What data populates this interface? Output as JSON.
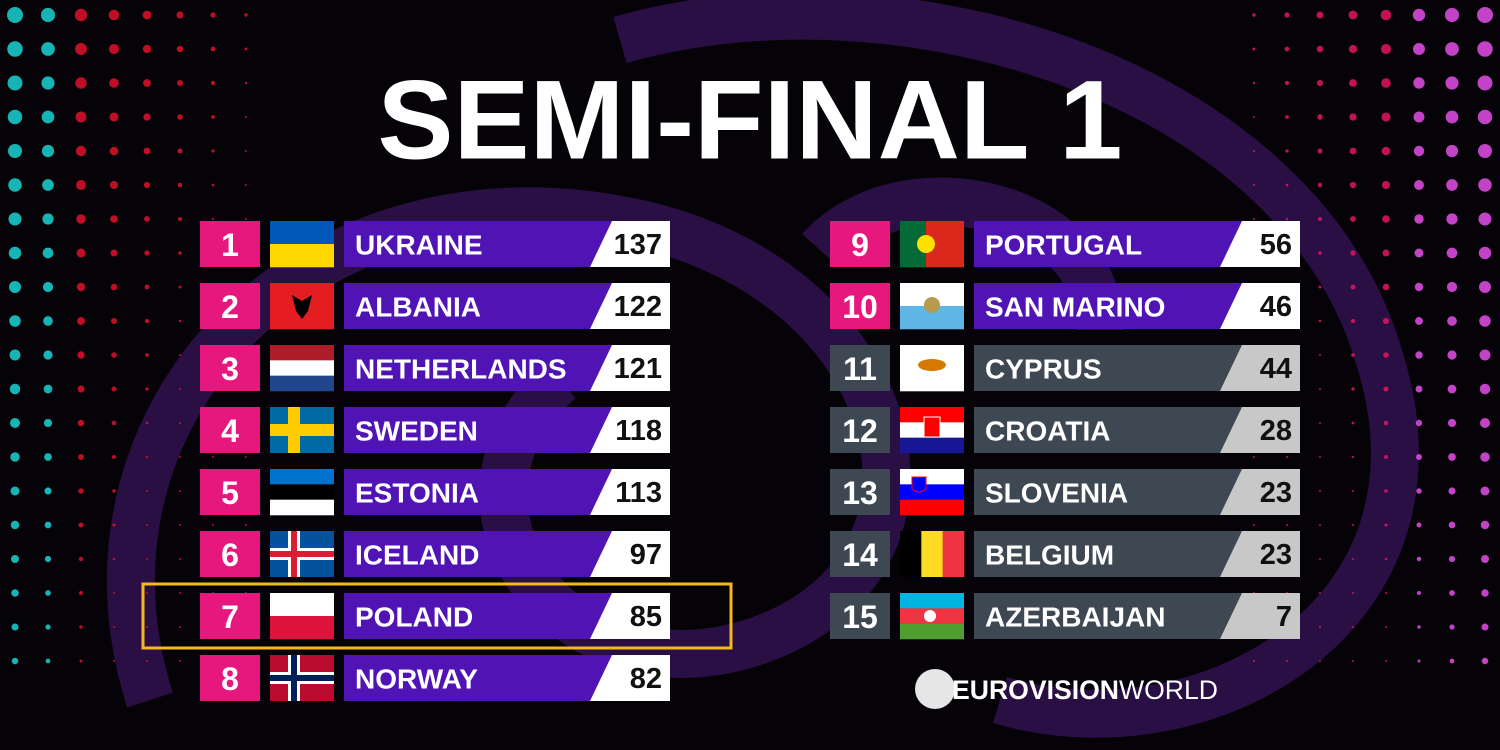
{
  "header": {
    "title": "SEMI-FINAL 1"
  },
  "table": {
    "rows": [
      {
        "rank": "1",
        "country": "UKRAINE",
        "points": "137",
        "color": "#e6187e"
      },
      {
        "rank": "2",
        "country": "ALBANIA",
        "points": "122",
        "color": "#e6187e"
      },
      {
        "rank": "3",
        "country": "NETHERLANDS",
        "points": "121",
        "color": "#e6187e"
      },
      {
        "rank": "4",
        "country": "SWEDEN",
        "points": "118",
        "color": "#e6187e"
      },
      {
        "rank": "5",
        "country": "ESTONIA",
        "points": "113",
        "color": "#e6187e"
      },
      {
        "rank": "6",
        "country": "ICELAND",
        "points": "97",
        "color": "#e6187e"
      },
      {
        "rank": "7",
        "country": "POLAND",
        "points": "85",
        "color": "#e6187e"
      },
      {
        "rank": "8",
        "country": "NORWAY",
        "points": "82",
        "color": "#e6187e"
      },
      {
        "rank": "9",
        "country": "PORTUGAL",
        "points": "56",
        "color": "#e6187e"
      },
      {
        "rank": "10",
        "country": "SAN MARINO",
        "points": "46",
        "color": "#e6187e"
      },
      {
        "rank": "11",
        "country": "CYPRUS",
        "points": "44",
        "color": "#3e4852"
      },
      {
        "rank": "12",
        "country": "CROATIA",
        "points": "28",
        "color": "#3e4852"
      },
      {
        "rank": "13",
        "country": "SLOVENIA",
        "points": "23",
        "color": "#3e4852"
      },
      {
        "rank": "14",
        "country": "BELGIUM",
        "points": "23",
        "color": "#3e4852"
      },
      {
        "rank": "15",
        "country": "AZERBAIJAN",
        "points": "7",
        "color": "#3e4852"
      }
    ]
  },
  "logo": {
    "bold": "EUROVISION",
    "light": "WORLD"
  }
}
